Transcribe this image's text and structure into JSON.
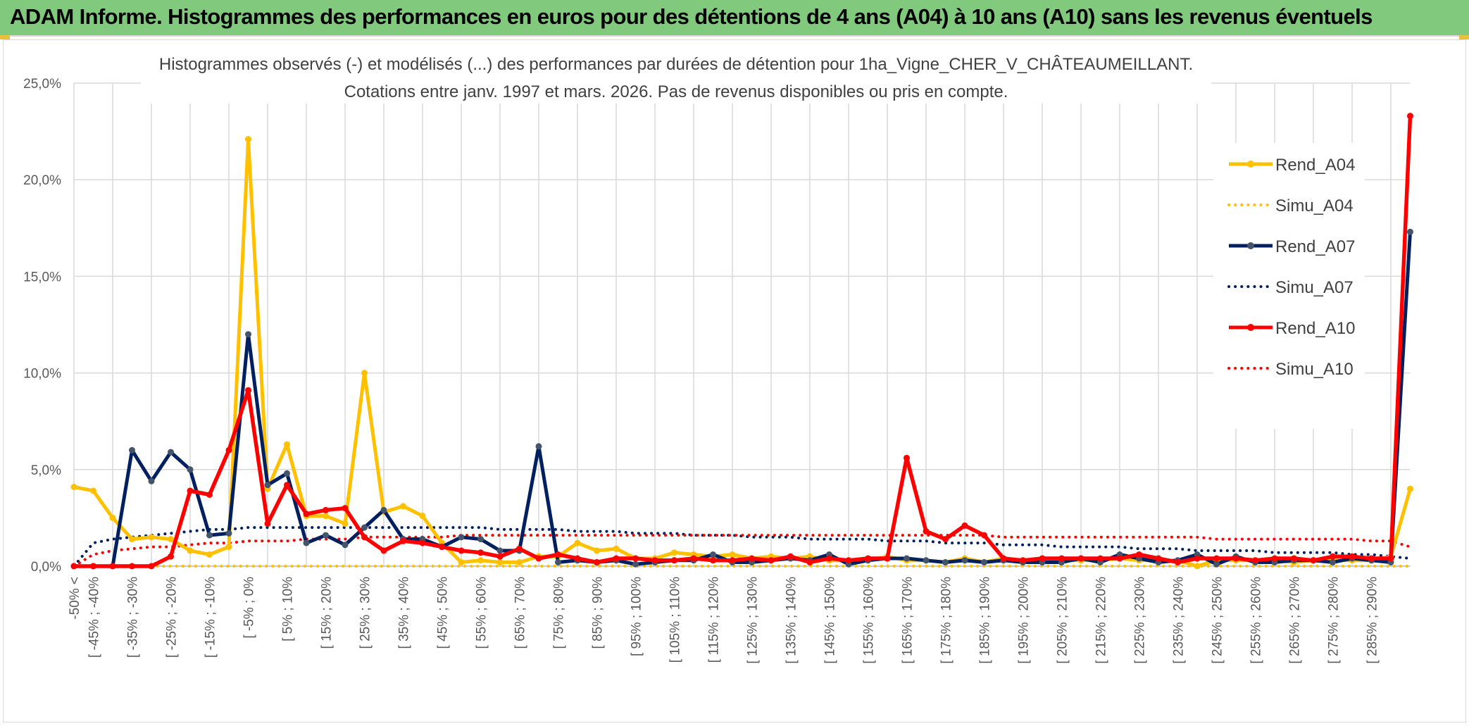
{
  "header": {
    "title": "ADAM Informe. Histogrammes des performances en euros pour des détentions de 4 ans (A04) à 10 ans (A10) sans les revenus éventuels"
  },
  "colors": {
    "header_bg": "#80c97d",
    "A04": "#ffc000",
    "A07": "#002060",
    "A10": "#ff0000",
    "A07_marker": "#44546a",
    "grid": "#d9d9d9"
  },
  "chart_data": {
    "type": "line",
    "title_lines": [
      "Histogrammes observés (-) et modélisés (...) des performances par durées de détention pour 1ha_Vigne_CHER_V_CHÂTEAUMEILLANT.",
      "Cotations entre janv. 1997 et mars. 2026. Pas de revenus disponibles ou pris en compte."
    ],
    "y_ticks": [
      "0,0%",
      "5,0%",
      "10,0%",
      "15,0%",
      "20,0%",
      "25,0%"
    ],
    "ylim": [
      0,
      25
    ],
    "grid": true,
    "legend_position": "right",
    "x_tick_labels": [
      "-50% <",
      "[ -45% ; -40%",
      "[ -35% ; -30%",
      "[ -25% ; -20%",
      "[ -15% ; -10%",
      "[ -5% ; 0%",
      "[ 5% ; 10%",
      "[ 15% ; 20%",
      "[ 25% ; 30%",
      "[ 35% ; 40%",
      "[ 45% ; 50%",
      "[ 55% ; 60%",
      "[ 65% ; 70%",
      "[ 75% ; 80%",
      "[ 85% ; 90%",
      "[ 95% ; 100%",
      "[ 105% ; 110%",
      "[ 115% ; 120%",
      "[ 125% ; 130%",
      "[ 135% ; 140%",
      "[ 145% ; 150%",
      "[ 155% ; 160%",
      "[ 165% ; 170%",
      "[ 175% ; 180%",
      "[ 185% ; 190%",
      "[ 195% ; 200%",
      "[ 205% ; 210%",
      "[ 215% ; 220%",
      "[ 225% ; 230%",
      "[ 235% ; 240%",
      "[ 245% ; 250%",
      "[ 255% ; 260%",
      "[ 265% ; 270%",
      "[ 275% ; 280%",
      "[ 285% ; 290%"
    ],
    "n_categories": 70,
    "series": [
      {
        "name": "Rend_A04",
        "style": "solid",
        "color": "#ffc000",
        "values": [
          4.1,
          3.9,
          2.5,
          1.4,
          1.5,
          1.4,
          0.8,
          0.6,
          1.0,
          22.1,
          4.0,
          6.3,
          2.6,
          2.6,
          2.2,
          10.0,
          2.8,
          3.1,
          2.6,
          1.2,
          0.2,
          0.3,
          0.2,
          0.2,
          0.5,
          0.5,
          1.2,
          0.8,
          0.9,
          0.4,
          0.4,
          0.7,
          0.6,
          0.5,
          0.6,
          0.4,
          0.5,
          0.4,
          0.5,
          0.3,
          0.3,
          0.3,
          0.5,
          0.3,
          0.3,
          0.2,
          0.4,
          0.2,
          0.4,
          0.2,
          0.4,
          0.3,
          0.3,
          0.3,
          0.4,
          0.3,
          0.3,
          0.3,
          0.0,
          0.3,
          0.3,
          0.3,
          0.3,
          0.2,
          0.3,
          0.3,
          0.3,
          0.3,
          0.5,
          4.0
        ]
      },
      {
        "name": "Simu_A04",
        "style": "dotted",
        "color": "#ffc000",
        "values": [
          0.0,
          0.0,
          0.0,
          0.0,
          0.0,
          0.0,
          0.0,
          0.0,
          0.0,
          0.0,
          0.0,
          0.0,
          0.0,
          0.0,
          0.0,
          0.0,
          0.0,
          0.0,
          0.0,
          0.0,
          0.0,
          0.0,
          0.0,
          0.0,
          0.0,
          0.0,
          0.0,
          0.0,
          0.0,
          0.0,
          0.0,
          0.0,
          0.0,
          0.0,
          0.0,
          0.0,
          0.0,
          0.0,
          0.0,
          0.0,
          0.0,
          0.0,
          0.0,
          0.0,
          0.0,
          0.0,
          0.0,
          0.0,
          0.0,
          0.0,
          0.0,
          0.0,
          0.0,
          0.0,
          0.0,
          0.0,
          0.0,
          0.0,
          0.0,
          0.0,
          0.0,
          0.0,
          0.0,
          0.0,
          0.0,
          0.0,
          0.0,
          0.0,
          0.0,
          0.0
        ]
      },
      {
        "name": "Rend_A07",
        "style": "solid",
        "color": "#002060",
        "values": [
          0.0,
          0.0,
          0.0,
          6.0,
          4.4,
          5.9,
          5.0,
          1.6,
          1.7,
          12.0,
          4.2,
          4.8,
          1.2,
          1.6,
          1.1,
          2.0,
          2.9,
          1.4,
          1.4,
          1.0,
          1.5,
          1.4,
          0.8,
          0.8,
          6.2,
          0.2,
          0.3,
          0.2,
          0.3,
          0.1,
          0.2,
          0.3,
          0.3,
          0.6,
          0.2,
          0.2,
          0.3,
          0.4,
          0.3,
          0.6,
          0.1,
          0.3,
          0.4,
          0.4,
          0.3,
          0.2,
          0.3,
          0.2,
          0.3,
          0.2,
          0.2,
          0.2,
          0.4,
          0.2,
          0.6,
          0.4,
          0.2,
          0.3,
          0.6,
          0.1,
          0.5,
          0.2,
          0.2,
          0.3,
          0.3,
          0.2,
          0.4,
          0.3,
          0.2,
          17.3
        ]
      },
      {
        "name": "Simu_A07",
        "style": "dotted",
        "color": "#002060",
        "values": [
          0.0,
          1.2,
          1.4,
          1.5,
          1.6,
          1.7,
          1.8,
          1.9,
          1.9,
          2.0,
          2.0,
          2.0,
          2.0,
          2.0,
          2.0,
          2.0,
          2.0,
          2.0,
          2.0,
          2.0,
          2.0,
          2.0,
          1.9,
          1.9,
          1.9,
          1.9,
          1.8,
          1.8,
          1.8,
          1.7,
          1.7,
          1.7,
          1.6,
          1.6,
          1.6,
          1.5,
          1.5,
          1.5,
          1.4,
          1.4,
          1.4,
          1.4,
          1.3,
          1.3,
          1.3,
          1.2,
          1.2,
          1.2,
          1.1,
          1.1,
          1.1,
          1.0,
          1.0,
          1.0,
          1.0,
          0.9,
          0.9,
          0.9,
          0.8,
          0.8,
          0.8,
          0.8,
          0.7,
          0.7,
          0.7,
          0.7,
          0.6,
          0.6,
          0.5,
          0.4
        ]
      },
      {
        "name": "Rend_A10",
        "style": "solid",
        "color": "#ff0000",
        "values": [
          0.0,
          0.0,
          0.0,
          0.0,
          0.0,
          0.5,
          3.9,
          3.7,
          6.0,
          9.1,
          2.2,
          4.2,
          2.7,
          2.9,
          3.0,
          1.5,
          0.8,
          1.3,
          1.2,
          1.0,
          0.8,
          0.7,
          0.5,
          0.9,
          0.4,
          0.6,
          0.4,
          0.2,
          0.4,
          0.4,
          0.3,
          0.3,
          0.4,
          0.3,
          0.3,
          0.4,
          0.3,
          0.5,
          0.2,
          0.4,
          0.3,
          0.4,
          0.4,
          5.6,
          1.8,
          1.4,
          2.1,
          1.6,
          0.4,
          0.3,
          0.4,
          0.4,
          0.4,
          0.4,
          0.4,
          0.6,
          0.4,
          0.2,
          0.4,
          0.4,
          0.4,
          0.3,
          0.4,
          0.4,
          0.3,
          0.5,
          0.5,
          0.4,
          0.4,
          23.3
        ]
      },
      {
        "name": "Simu_A10",
        "style": "dotted",
        "color": "#ff0000",
        "values": [
          0.0,
          0.6,
          0.8,
          0.9,
          1.0,
          1.0,
          1.1,
          1.2,
          1.2,
          1.3,
          1.3,
          1.3,
          1.4,
          1.4,
          1.4,
          1.5,
          1.5,
          1.5,
          1.5,
          1.5,
          1.6,
          1.6,
          1.6,
          1.6,
          1.6,
          1.6,
          1.6,
          1.6,
          1.6,
          1.6,
          1.6,
          1.6,
          1.6,
          1.6,
          1.6,
          1.6,
          1.6,
          1.6,
          1.6,
          1.6,
          1.6,
          1.6,
          1.6,
          1.6,
          1.6,
          1.6,
          1.6,
          1.6,
          1.5,
          1.5,
          1.5,
          1.5,
          1.5,
          1.5,
          1.5,
          1.5,
          1.5,
          1.5,
          1.5,
          1.4,
          1.4,
          1.4,
          1.4,
          1.4,
          1.4,
          1.4,
          1.4,
          1.3,
          1.3,
          1.0
        ]
      }
    ]
  }
}
